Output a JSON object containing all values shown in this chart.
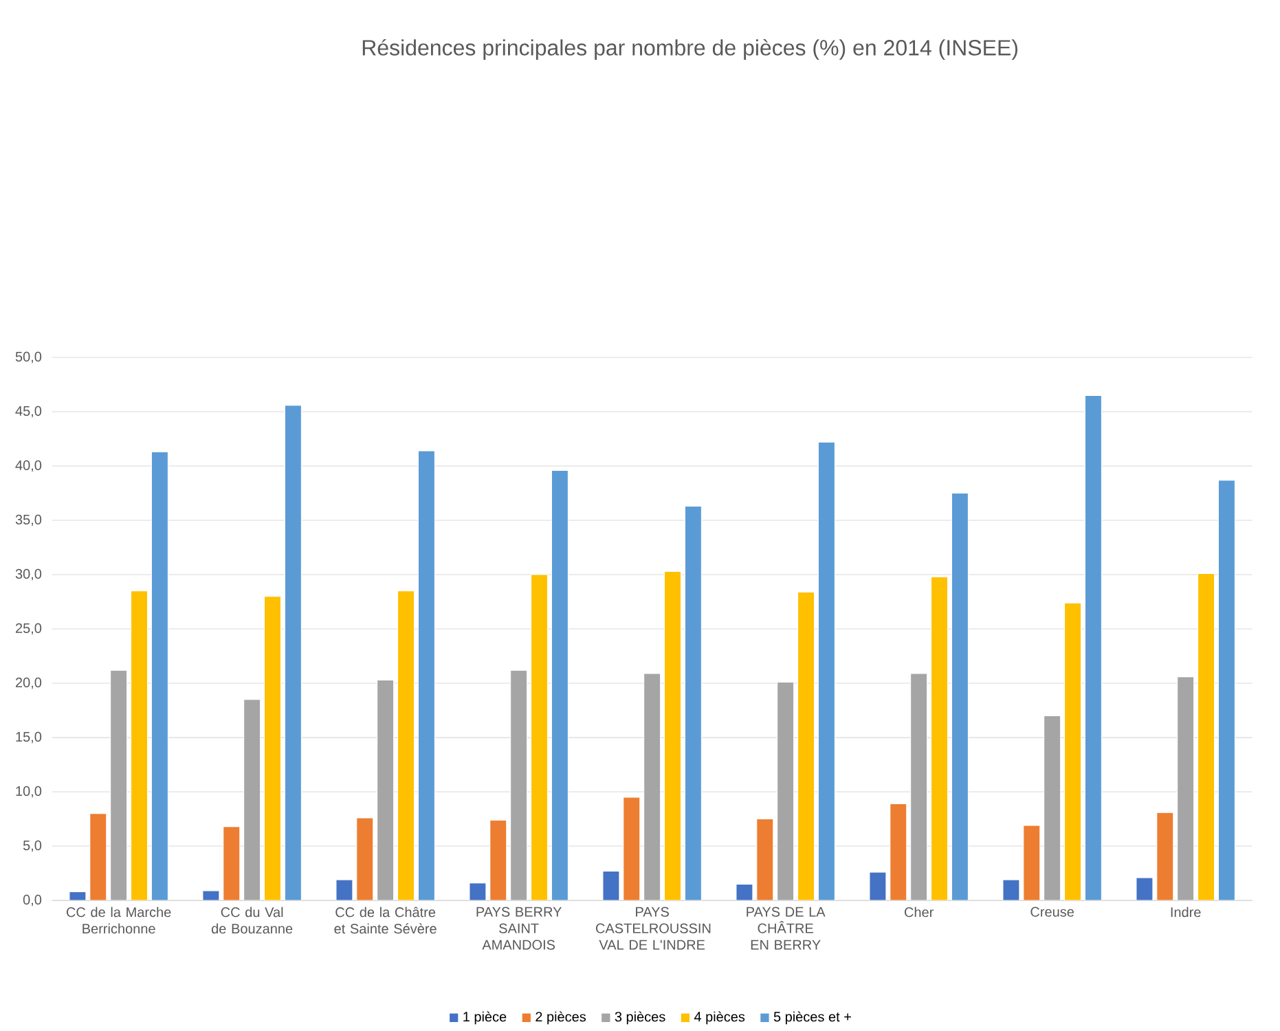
{
  "chart_data": {
    "type": "bar",
    "title": "Résidences principales par nombre de pièces (%) en 2014 (INSEE)",
    "categories": [
      "CC de la Marche Berrichonne",
      "CC du Val de Bouzanne",
      "CC de la Châtre et Sainte Sévère",
      "PAYS BERRY SAINT AMANDOIS",
      "PAYS CASTELROUSSIN VAL DE L'INDRE",
      "PAYS DE LA CHÂTRE EN BERRY",
      "Cher",
      "Creuse",
      "Indre"
    ],
    "series": [
      {
        "name": "1 pièce",
        "color": "#4472c4",
        "values": [
          0.8,
          0.9,
          1.9,
          1.6,
          2.7,
          1.5,
          2.6,
          1.9,
          2.1
        ]
      },
      {
        "name": "2 pièces",
        "color": "#ed7d31",
        "values": [
          8.0,
          6.8,
          7.6,
          7.4,
          9.5,
          7.5,
          8.9,
          6.9,
          8.1
        ]
      },
      {
        "name": "3 pièces",
        "color": "#a5a5a5",
        "values": [
          21.2,
          18.5,
          20.3,
          21.2,
          20.9,
          20.1,
          20.9,
          17.0,
          20.6
        ]
      },
      {
        "name": "4 pièces",
        "color": "#ffc000",
        "values": [
          28.5,
          28.0,
          28.5,
          30.0,
          30.3,
          28.4,
          29.8,
          27.4,
          30.1
        ]
      },
      {
        "name": "5 pièces et +",
        "color": "#5b9bd5",
        "values": [
          41.3,
          45.6,
          41.4,
          39.6,
          36.3,
          42.2,
          37.5,
          46.5,
          38.7
        ]
      }
    ],
    "ylim": [
      0,
      50
    ],
    "yticks": [
      {
        "value": 0,
        "label": "0,0"
      },
      {
        "value": 5,
        "label": "5,0"
      },
      {
        "value": 10,
        "label": "10,0"
      },
      {
        "value": 15,
        "label": "15,0"
      },
      {
        "value": 20,
        "label": "20,0"
      },
      {
        "value": 25,
        "label": "25,0"
      },
      {
        "value": 30,
        "label": "30,0"
      },
      {
        "value": 35,
        "label": "35,0"
      },
      {
        "value": 40,
        "label": "40,0"
      },
      {
        "value": 45,
        "label": "45,0"
      },
      {
        "value": 50,
        "label": "50,0"
      }
    ],
    "grid": "y",
    "legend": "bottom"
  }
}
